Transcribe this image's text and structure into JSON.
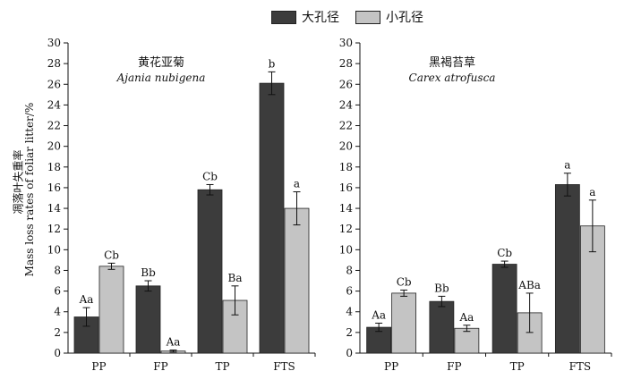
{
  "legend": {
    "items": [
      {
        "label": "大孔径",
        "color": "#3c3c3c"
      },
      {
        "label": "小孔径",
        "color": "#c4c4c4"
      }
    ]
  },
  "y_axis_label": {
    "line1": "凋落叶失重率",
    "line2": "Mass loss rates of foliar litter/%"
  },
  "chart_data": [
    {
      "type": "bar",
      "title": "黄花亚菊",
      "subtitle": "Ajania nubigena",
      "categories": [
        "PP",
        "FP",
        "TP",
        "FTS"
      ],
      "ylim": [
        0,
        30
      ],
      "yticks": [
        0,
        2,
        4,
        6,
        8,
        10,
        12,
        14,
        16,
        18,
        20,
        22,
        24,
        26,
        28,
        30
      ],
      "series": [
        {
          "name": "大孔径",
          "color": "#3c3c3c",
          "values": [
            3.5,
            6.5,
            15.8,
            26.1
          ],
          "errors": [
            0.9,
            0.5,
            0.5,
            1.1
          ],
          "labels": [
            "Aa",
            "Bb",
            "Cb",
            "b"
          ]
        },
        {
          "name": "小孔径",
          "color": "#c4c4c4",
          "values": [
            8.4,
            0.2,
            5.1,
            14.0
          ],
          "errors": [
            0.3,
            0.1,
            1.4,
            1.6
          ],
          "labels": [
            "Cb",
            "Aa",
            "Ba",
            "a"
          ]
        }
      ]
    },
    {
      "type": "bar",
      "title": "黑褐苔草",
      "subtitle": "Carex atrofusca",
      "categories": [
        "PP",
        "FP",
        "TP",
        "FTS"
      ],
      "ylim": [
        0,
        30
      ],
      "yticks": [
        0,
        2,
        4,
        6,
        8,
        10,
        12,
        14,
        16,
        18,
        20,
        22,
        24,
        26,
        28,
        30
      ],
      "series": [
        {
          "name": "大孔径",
          "color": "#3c3c3c",
          "values": [
            2.5,
            5.0,
            8.6,
            16.3
          ],
          "errors": [
            0.4,
            0.5,
            0.3,
            1.1
          ],
          "labels": [
            "Aa",
            "Bb",
            "Cb",
            "a"
          ]
        },
        {
          "name": "小孔径",
          "color": "#c4c4c4",
          "values": [
            5.8,
            2.4,
            3.9,
            12.3
          ],
          "errors": [
            0.3,
            0.3,
            1.9,
            2.5
          ],
          "labels": [
            "Cb",
            "Aa",
            "ABa",
            "a"
          ]
        }
      ]
    }
  ]
}
